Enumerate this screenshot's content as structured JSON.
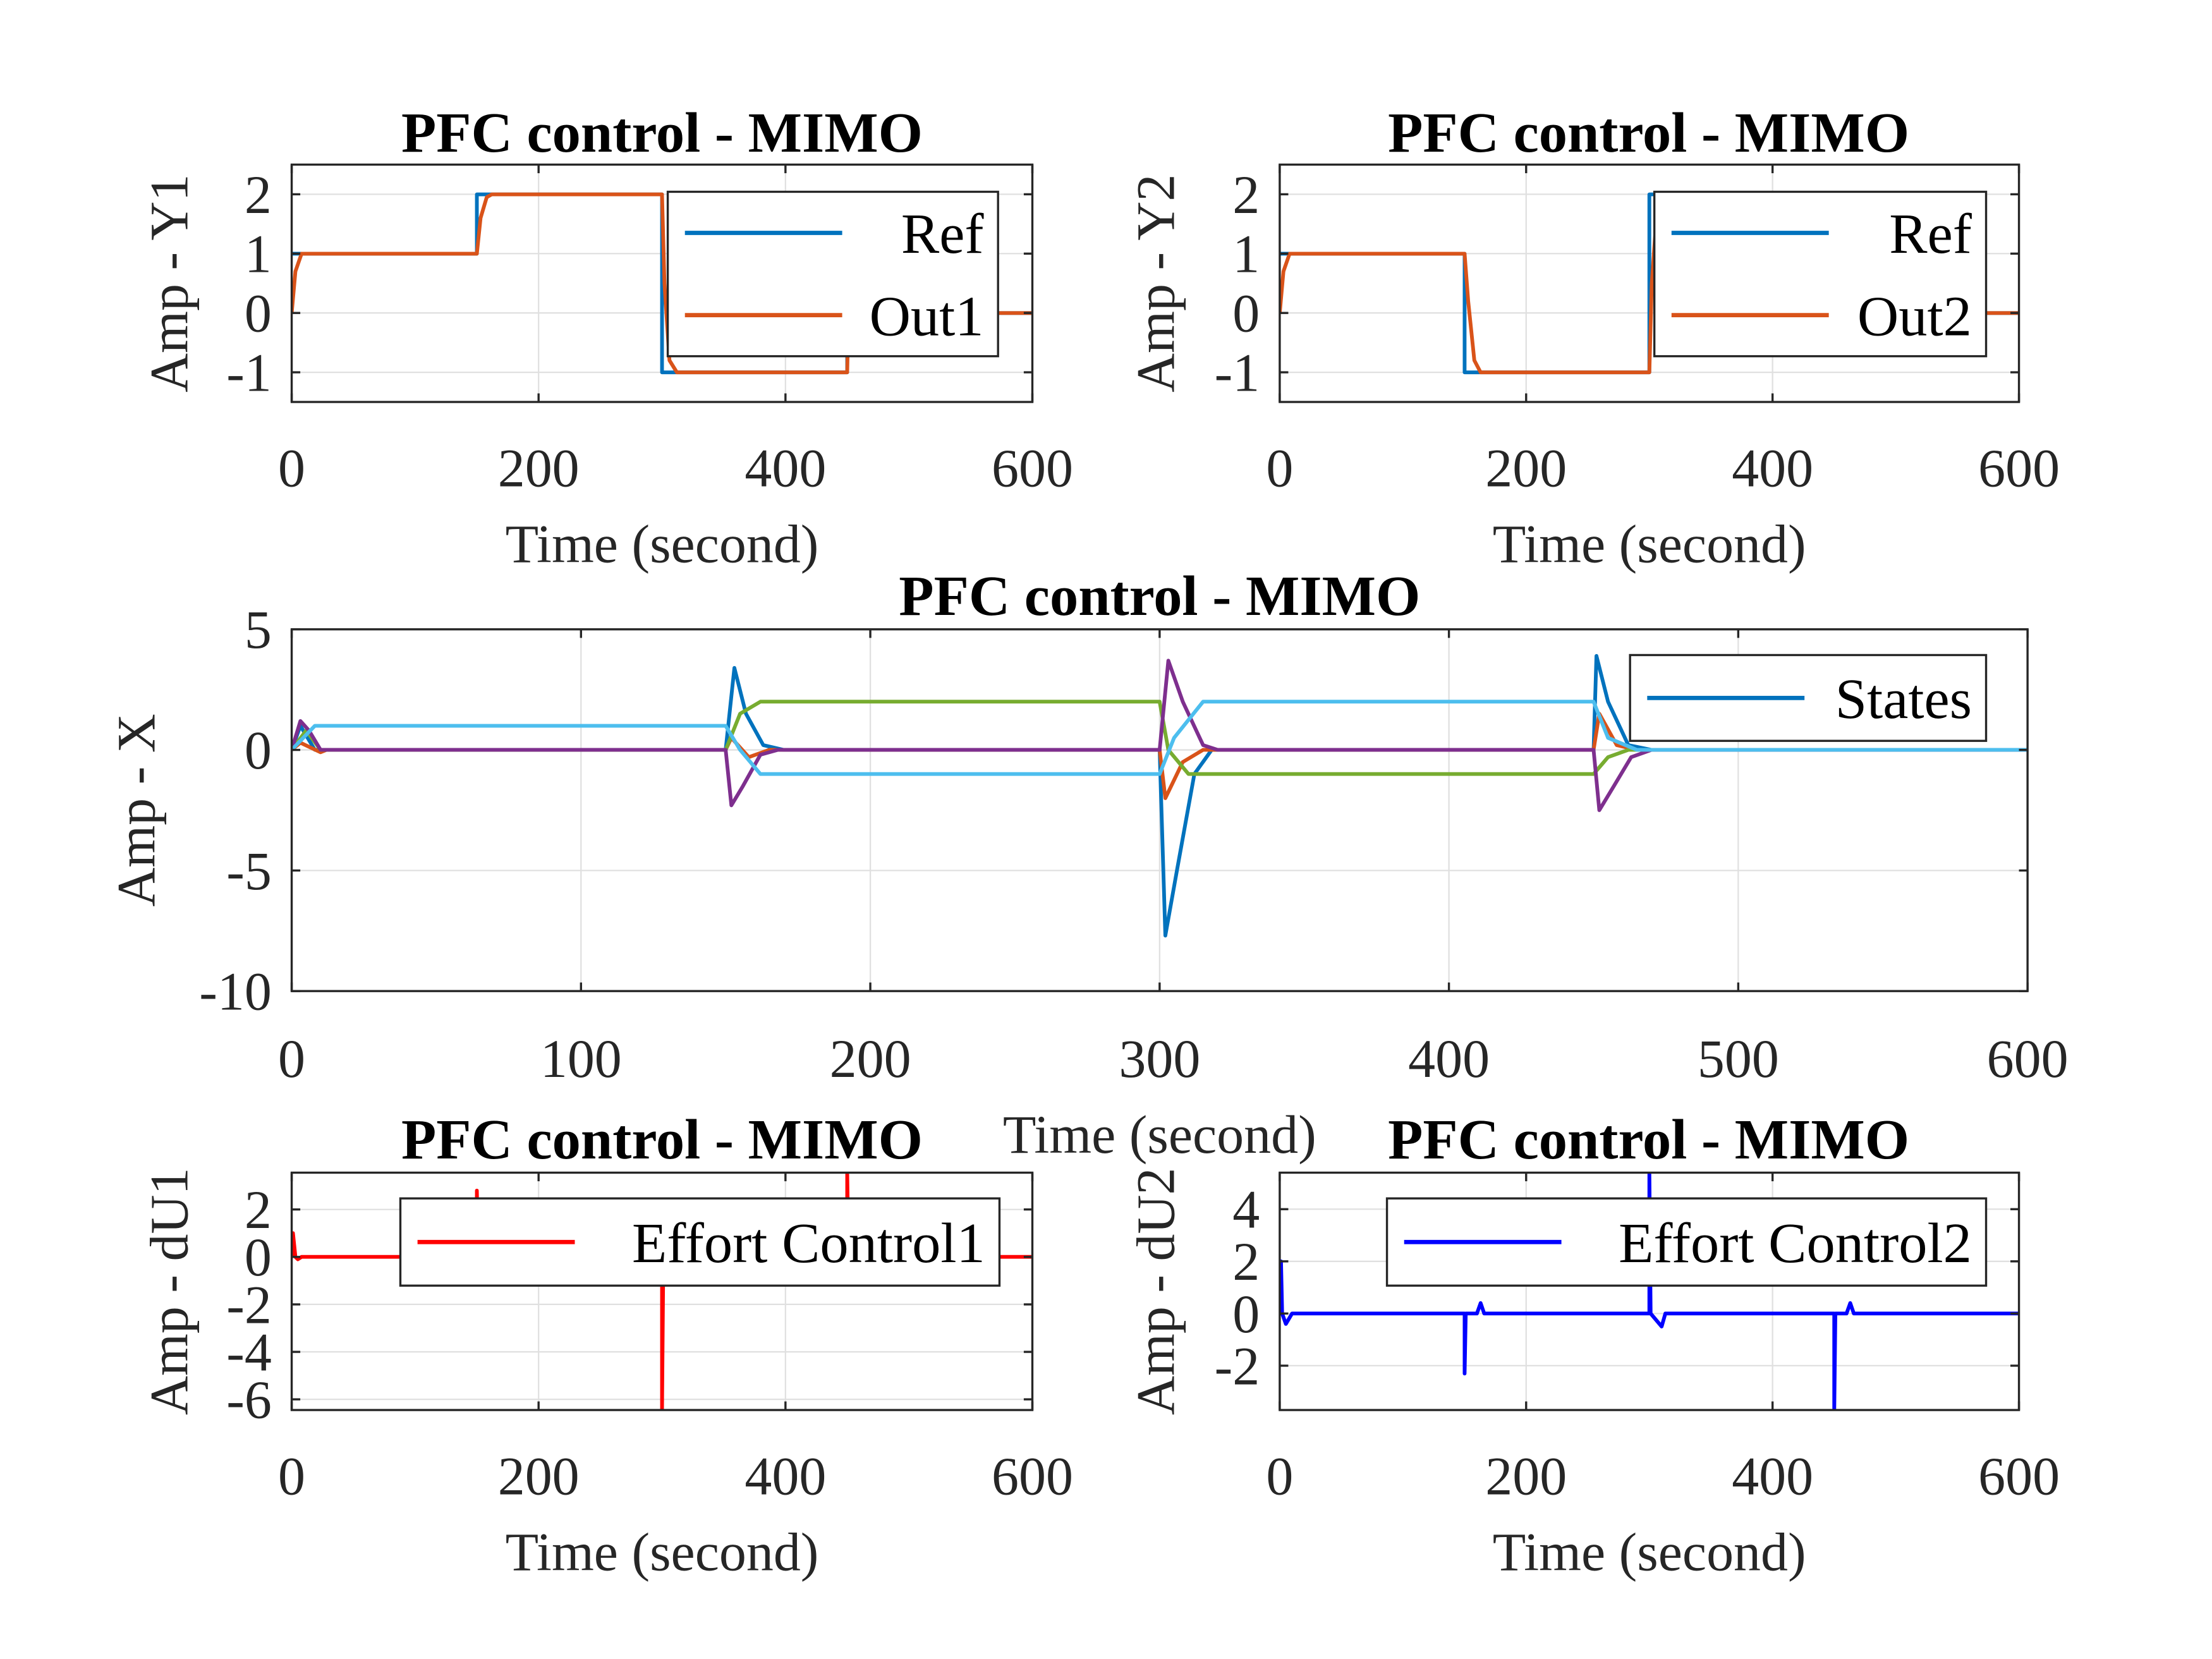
{
  "chart_data": [
    {
      "id": "y1",
      "type": "line",
      "title": "PFC control - MIMO",
      "xlabel": "Time  (second)",
      "ylabel": "Amp - Y1",
      "xlim": [
        0,
        600
      ],
      "ylim": [
        -1.5,
        2.5
      ],
      "xticks": [
        0,
        200,
        400,
        600
      ],
      "yticks": [
        -1,
        0,
        1,
        2
      ],
      "grid": true,
      "legend_position": "top-right",
      "series": [
        {
          "name": "Ref",
          "color": "#0072BD",
          "points": [
            [
              0,
              1
            ],
            [
              150,
              1
            ],
            [
              150,
              2
            ],
            [
              300,
              2
            ],
            [
              300,
              -1
            ],
            [
              450,
              -1
            ],
            [
              450,
              0
            ],
            [
              600,
              0
            ]
          ]
        },
        {
          "name": "Out1",
          "color": "#D95319",
          "points": [
            [
              0,
              0
            ],
            [
              3,
              0.7
            ],
            [
              8,
              1
            ],
            [
              150,
              1
            ],
            [
              153,
              1.6
            ],
            [
              158,
              1.95
            ],
            [
              162,
              2
            ],
            [
              300,
              2
            ],
            [
              302,
              0.5
            ],
            [
              306,
              -0.8
            ],
            [
              312,
              -1
            ],
            [
              450,
              -1
            ],
            [
              451,
              0
            ],
            [
              600,
              0
            ]
          ]
        }
      ]
    },
    {
      "id": "y2",
      "type": "line",
      "title": "PFC control - MIMO",
      "xlabel": "Time  (second)",
      "ylabel": "Amp - Y2",
      "xlim": [
        0,
        600
      ],
      "ylim": [
        -1.5,
        2.5
      ],
      "xticks": [
        0,
        200,
        400,
        600
      ],
      "yticks": [
        -1,
        0,
        1,
        2
      ],
      "grid": true,
      "legend_position": "top-right",
      "series": [
        {
          "name": "Ref",
          "color": "#0072BD",
          "points": [
            [
              0,
              1
            ],
            [
              150,
              1
            ],
            [
              150,
              -1
            ],
            [
              300,
              -1
            ],
            [
              300,
              2
            ],
            [
              450,
              2
            ],
            [
              450,
              0
            ],
            [
              600,
              0
            ]
          ]
        },
        {
          "name": "Out2",
          "color": "#D95319",
          "points": [
            [
              0,
              0
            ],
            [
              3,
              0.7
            ],
            [
              8,
              1
            ],
            [
              150,
              1
            ],
            [
              153,
              0.2
            ],
            [
              158,
              -0.8
            ],
            [
              163,
              -1
            ],
            [
              300,
              -1
            ],
            [
              302,
              0.5
            ],
            [
              306,
              1.7
            ],
            [
              312,
              2
            ],
            [
              450,
              2
            ],
            [
              453,
              0.5
            ],
            [
              460,
              0
            ],
            [
              600,
              0
            ]
          ]
        }
      ]
    },
    {
      "id": "x",
      "type": "line",
      "title": "PFC control - MIMO",
      "xlabel": "Time  (second)",
      "ylabel": "Amp - X",
      "xlim": [
        0,
        600
      ],
      "ylim": [
        -10,
        5
      ],
      "xticks": [
        0,
        100,
        200,
        300,
        400,
        500,
        600
      ],
      "yticks": [
        -10,
        -5,
        0,
        5
      ],
      "grid": true,
      "legend_position": "top-right",
      "legend_entries": [
        "States"
      ],
      "series": [
        {
          "name": "States",
          "color": "#0072BD",
          "points": [
            [
              0,
              0
            ],
            [
              3,
              1.0
            ],
            [
              8,
              0
            ],
            [
              150,
              0
            ],
            [
              153,
              3.4
            ],
            [
              157,
              1.5
            ],
            [
              163,
              0.2
            ],
            [
              170,
              0
            ],
            [
              300,
              0
            ],
            [
              302,
              -7.7
            ],
            [
              306,
              -5
            ],
            [
              312,
              -1
            ],
            [
              318,
              0
            ],
            [
              450,
              0
            ],
            [
              451,
              3.9
            ],
            [
              455,
              2
            ],
            [
              462,
              0.2
            ],
            [
              470,
              0
            ],
            [
              600,
              0
            ]
          ]
        },
        {
          "color": "#D95319",
          "points": [
            [
              0,
              0
            ],
            [
              3,
              0.3
            ],
            [
              10,
              -0.1
            ],
            [
              12,
              0
            ],
            [
              150,
              0
            ],
            [
              152,
              0.5
            ],
            [
              158,
              -0.3
            ],
            [
              165,
              0
            ],
            [
              300,
              0
            ],
            [
              302,
              -2
            ],
            [
              308,
              -0.5
            ],
            [
              315,
              0
            ],
            [
              450,
              0
            ],
            [
              452,
              1.5
            ],
            [
              458,
              0.2
            ],
            [
              465,
              0
            ],
            [
              600,
              0
            ]
          ]
        },
        {
          "color": "#77AC30",
          "points": [
            [
              0,
              0
            ],
            [
              5,
              0.8
            ],
            [
              10,
              0
            ],
            [
              150,
              0
            ],
            [
              155,
              1.5
            ],
            [
              162,
              2
            ],
            [
              300,
              2
            ],
            [
              303,
              0
            ],
            [
              310,
              -1
            ],
            [
              450,
              -1
            ],
            [
              455,
              -0.3
            ],
            [
              462,
              0
            ],
            [
              600,
              0
            ]
          ]
        },
        {
          "color": "#7E2F8E",
          "points": [
            [
              0,
              0
            ],
            [
              3,
              1.2
            ],
            [
              6,
              0.8
            ],
            [
              10,
              0
            ],
            [
              150,
              0
            ],
            [
              152,
              -2.3
            ],
            [
              156,
              -1.5
            ],
            [
              162,
              -0.2
            ],
            [
              168,
              0
            ],
            [
              300,
              0
            ],
            [
              303,
              3.7
            ],
            [
              308,
              2
            ],
            [
              315,
              0.2
            ],
            [
              320,
              0
            ],
            [
              450,
              0
            ],
            [
              452,
              -2.5
            ],
            [
              457,
              -1.5
            ],
            [
              463,
              -0.3
            ],
            [
              470,
              0
            ],
            [
              600,
              0
            ]
          ]
        },
        {
          "color": "#4DBEEE",
          "points": [
            [
              0,
              0
            ],
            [
              8,
              1
            ],
            [
              150,
              1
            ],
            [
              155,
              0
            ],
            [
              162,
              -1
            ],
            [
              300,
              -1
            ],
            [
              305,
              0.5
            ],
            [
              315,
              2
            ],
            [
              450,
              2
            ],
            [
              455,
              0.5
            ],
            [
              465,
              0
            ],
            [
              600,
              0
            ]
          ]
        }
      ]
    },
    {
      "id": "du1",
      "type": "line",
      "title": "PFC control - MIMO",
      "xlabel": "Time  (second)",
      "ylabel": "Amp - dU1",
      "xlim": [
        0,
        600
      ],
      "ylim": [
        -6.45,
        3.55
      ],
      "xticks": [
        0,
        200,
        400,
        600
      ],
      "yticks": [
        -6,
        -4,
        -2,
        0,
        2
      ],
      "grid": true,
      "legend_position": "top-right",
      "series": [
        {
          "name": "Effort Control1",
          "color": "#FF0000",
          "points": [
            [
              0,
              0
            ],
            [
              1,
              1
            ],
            [
              3,
              0
            ],
            [
              5,
              -0.1
            ],
            [
              8,
              0
            ],
            [
              150,
              0
            ],
            [
              150,
              2.8
            ],
            [
              151,
              0
            ],
            [
              300,
              0
            ],
            [
              300,
              -6.5
            ],
            [
              301,
              0
            ],
            [
              450,
              0
            ],
            [
              450,
              3.6
            ],
            [
              451,
              0
            ],
            [
              600,
              0
            ]
          ]
        }
      ]
    },
    {
      "id": "du2",
      "type": "line",
      "title": "PFC control - MIMO",
      "xlabel": "Time  (second)",
      "ylabel": "Amp - dU2",
      "xlim": [
        0,
        600
      ],
      "ylim": [
        -3.7,
        5.4
      ],
      "xticks": [
        0,
        200,
        400,
        600
      ],
      "yticks": [
        -2,
        0,
        2,
        4
      ],
      "grid": true,
      "legend_position": "top-right",
      "series": [
        {
          "name": "Effort Control2",
          "color": "#0000FF",
          "points": [
            [
              0,
              0
            ],
            [
              1,
              2
            ],
            [
              2,
              0
            ],
            [
              5,
              -0.4
            ],
            [
              10,
              0
            ],
            [
              150,
              0
            ],
            [
              150,
              -2.3
            ],
            [
              151,
              0
            ],
            [
              160,
              0
            ],
            [
              163,
              0.4
            ],
            [
              166,
              0
            ],
            [
              300,
              0
            ],
            [
              300,
              5.5
            ],
            [
              301,
              0
            ],
            [
              310,
              -0.5
            ],
            [
              313,
              0
            ],
            [
              450,
              0
            ],
            [
              450,
              -3.8
            ],
            [
              451,
              0
            ],
            [
              460,
              0
            ],
            [
              463,
              0.4
            ],
            [
              466,
              0
            ],
            [
              600,
              0
            ]
          ]
        }
      ]
    }
  ]
}
